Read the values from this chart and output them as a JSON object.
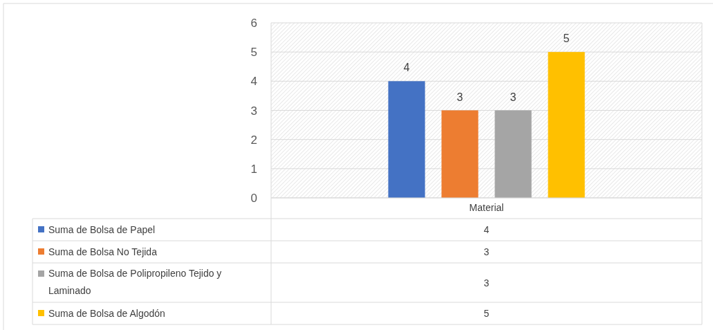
{
  "chart_data": {
    "type": "bar",
    "categories": [
      "Material"
    ],
    "series": [
      {
        "name": "Suma de Bolsa de Papel",
        "color": "#4472c4",
        "values": [
          4
        ]
      },
      {
        "name": "Suma de Bolsa No Tejida",
        "color": "#ed7d31",
        "values": [
          3
        ]
      },
      {
        "name": "Suma de Bolsa de Polipropileno Tejido y Laminado",
        "color": "#a5a5a5",
        "values": [
          3
        ]
      },
      {
        "name": "Suma de Bolsa de Algodón",
        "color": "#ffc000",
        "values": [
          5
        ]
      }
    ],
    "annotations": [
      "4",
      "3",
      "3",
      "5"
    ],
    "ylim": [
      0,
      6
    ],
    "yticks": [
      0,
      1,
      2,
      3,
      4,
      5,
      6
    ],
    "grid": "y",
    "data_labels": true,
    "legend": "bottom"
  }
}
